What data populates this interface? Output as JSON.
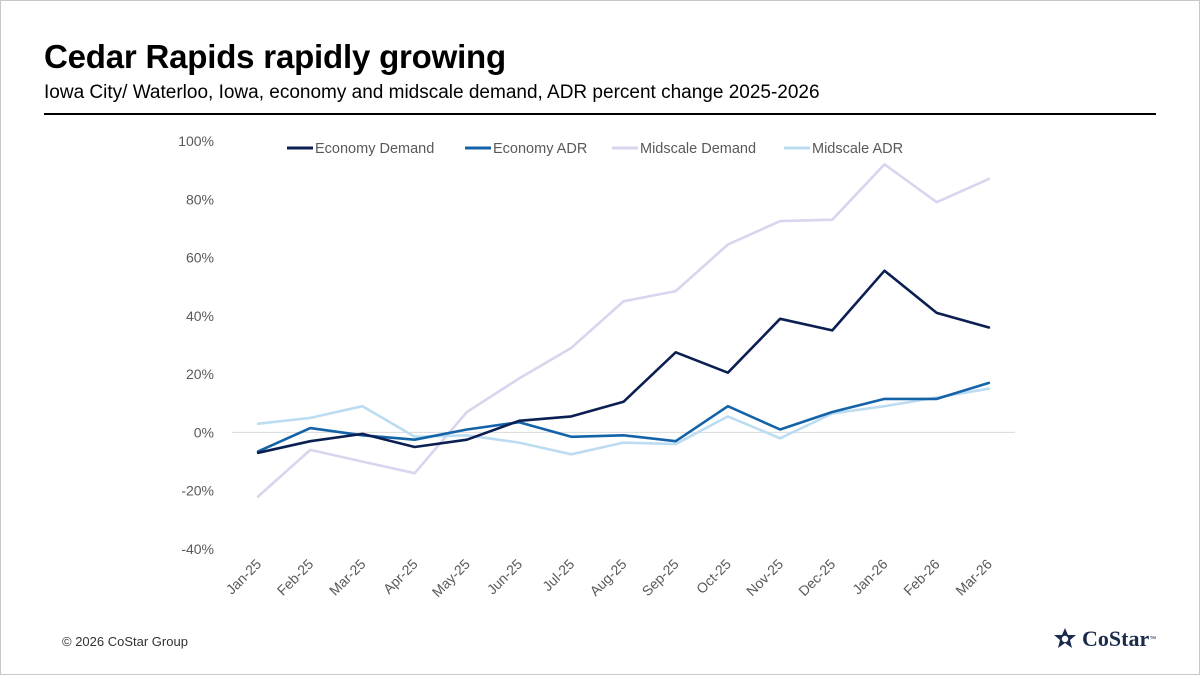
{
  "header": {
    "title": "Cedar Rapids rapidly growing",
    "subtitle": "Iowa City/ Waterloo, Iowa, economy and midscale demand, ADR percent change 2025-2026"
  },
  "footer": {
    "copyright": "© 2026 CoStar Group",
    "logo_text": "CoStar",
    "logo_tm": "™"
  },
  "chart_data": {
    "type": "line",
    "title": "Cedar Rapids rapidly growing",
    "subtitle": "Iowa City/ Waterloo, Iowa, economy and midscale demand, ADR percent change 2025-2026",
    "xlabel": "",
    "ylabel": "",
    "categories": [
      "Jan-25",
      "Feb-25",
      "Mar-25",
      "Apr-25",
      "May-25",
      "Jun-25",
      "Jul-25",
      "Aug-25",
      "Sep-25",
      "Oct-25",
      "Nov-25",
      "Dec-25",
      "Jan-26",
      "Feb-26",
      "Mar-26"
    ],
    "ylim": [
      -40,
      100
    ],
    "yticks": [
      -40,
      -20,
      0,
      20,
      40,
      60,
      80,
      100
    ],
    "ytick_labels": [
      "-40%",
      "-20%",
      "0%",
      "20%",
      "40%",
      "60%",
      "80%",
      "100%"
    ],
    "legend_position": "top",
    "grid": false,
    "series": [
      {
        "name": "Economy Demand",
        "color": "#0b1f52",
        "values": [
          -7,
          -3,
          -0.5,
          -5,
          -2.5,
          4,
          5.5,
          10.5,
          27.5,
          20.5,
          39,
          35,
          55.5,
          41,
          36
        ]
      },
      {
        "name": "Economy ADR",
        "color": "#1463a8",
        "values": [
          -6.5,
          1.5,
          -1,
          -2.5,
          1,
          3.5,
          -1.5,
          -1,
          -3,
          9,
          1,
          7,
          11.5,
          11.5,
          17
        ]
      },
      {
        "name": "Midscale Demand",
        "color": "#d8d5ef",
        "values": [
          -22,
          -6,
          -10,
          -14,
          7,
          18.5,
          29,
          45,
          48.5,
          64.5,
          72.5,
          73,
          92,
          79,
          87
        ]
      },
      {
        "name": "Midscale ADR",
        "color": "#bcdcf2",
        "values": [
          3,
          5,
          9,
          -1.5,
          -1,
          -3.5,
          -7.5,
          -3.5,
          -4,
          5.5,
          -2,
          6.5,
          9,
          12,
          15
        ]
      }
    ]
  }
}
